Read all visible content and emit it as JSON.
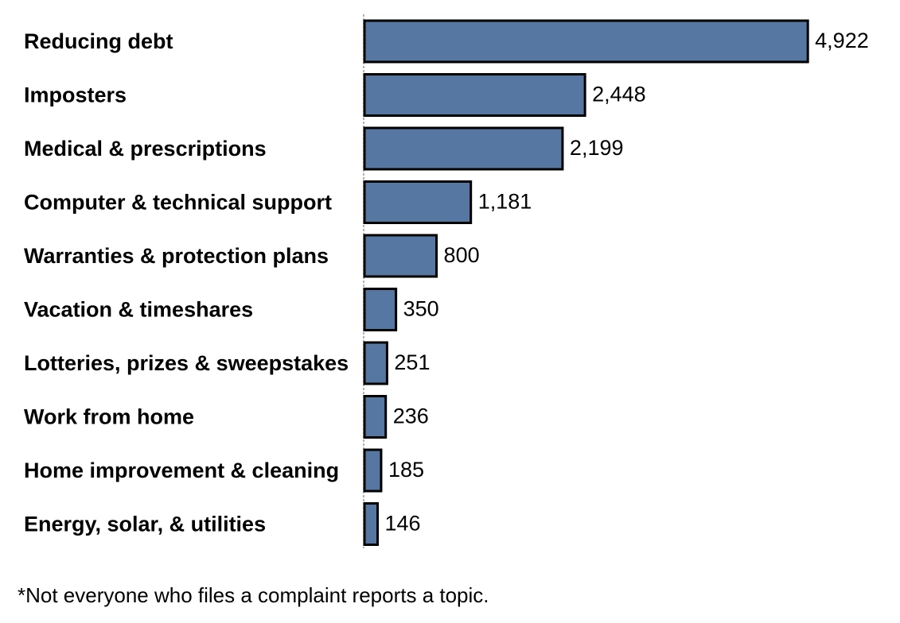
{
  "chart_data": {
    "type": "bar",
    "orientation": "horizontal",
    "categories": [
      "Reducing debt",
      "Imposters",
      "Medical & prescriptions",
      "Computer & technical support",
      "Warranties & protection plans",
      "Vacation & timeshares",
      "Lotteries, prizes & sweepstakes",
      "Work from home",
      "Home improvement & cleaning",
      "Energy, solar, & utilities"
    ],
    "values": [
      4922,
      2448,
      2199,
      1181,
      800,
      350,
      251,
      236,
      185,
      146
    ],
    "value_labels": [
      "4,922",
      "2,448",
      "2,199",
      "1,181",
      "800",
      "350",
      "251",
      "236",
      "185",
      "146"
    ],
    "xlim": [
      0,
      5000
    ],
    "grid": false,
    "legend": "none",
    "bar_color": "#5577a2",
    "bar_edge_color": "#000000"
  },
  "footnote": "*Not everyone who files a complaint reports a topic."
}
